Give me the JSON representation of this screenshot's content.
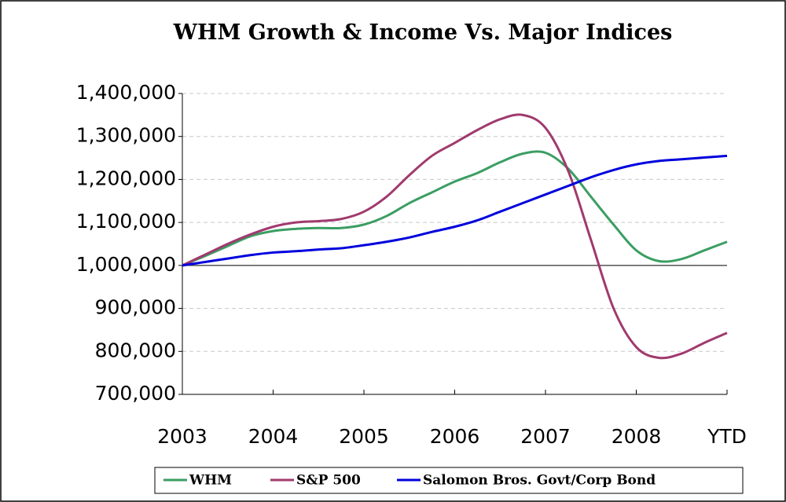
{
  "chart_data": {
    "type": "line",
    "title": "WHM Growth & Income Vs. Major Indices",
    "x": [
      2003,
      2003.25,
      2003.5,
      2003.75,
      2004,
      2004.25,
      2004.5,
      2004.75,
      2005,
      2005.25,
      2005.5,
      2005.75,
      2006,
      2006.25,
      2006.5,
      2006.75,
      2007,
      2007.25,
      2007.5,
      2007.75,
      2008,
      2008.25,
      2008.5,
      2008.75,
      2009
    ],
    "series": [
      {
        "name": "WHM",
        "color": "#3a9e62",
        "values": [
          1000000,
          1022000,
          1045000,
          1068000,
          1080000,
          1085000,
          1087000,
          1087000,
          1095000,
          1115000,
          1145000,
          1170000,
          1195000,
          1215000,
          1240000,
          1260000,
          1262000,
          1225000,
          1160000,
          1095000,
          1035000,
          1010000,
          1015000,
          1035000,
          1055000
        ]
      },
      {
        "name": "S&P 500",
        "color": "#a03a6e",
        "values": [
          1000000,
          1025000,
          1050000,
          1072000,
          1090000,
          1100000,
          1103000,
          1108000,
          1125000,
          1160000,
          1210000,
          1255000,
          1285000,
          1315000,
          1340000,
          1350000,
          1320000,
          1220000,
          1060000,
          900000,
          810000,
          785000,
          795000,
          820000,
          843000
        ]
      },
      {
        "name": "Salomon Bros. Govt/Corp Bond",
        "color": "#0000dd",
        "values": [
          1000000,
          1008000,
          1016000,
          1024000,
          1030000,
          1033000,
          1037000,
          1040000,
          1047000,
          1055000,
          1065000,
          1078000,
          1090000,
          1105000,
          1125000,
          1145000,
          1165000,
          1185000,
          1205000,
          1222000,
          1235000,
          1243000,
          1247000,
          1251000,
          1255000
        ]
      }
    ],
    "xlim": [
      2003,
      2009
    ],
    "xticks": [
      2003,
      2004,
      2005,
      2006,
      2007,
      2008,
      {
        "value": 2009,
        "label": "YTD"
      }
    ],
    "ylim": [
      700000,
      1400000
    ],
    "yticks": [
      {
        "value": 700000,
        "label": "700,000"
      },
      {
        "value": 800000,
        "label": "800,000"
      },
      {
        "value": 900000,
        "label": "900,000"
      },
      {
        "value": 1000000,
        "label": "1,000,000"
      },
      {
        "value": 1100000,
        "label": "1,100,000"
      },
      {
        "value": 1200000,
        "label": "1,200,000"
      },
      {
        "value": 1300000,
        "label": "1,300,000"
      },
      {
        "value": 1400000,
        "label": "1,400,000"
      }
    ],
    "baseline": 1000000,
    "grid": true,
    "legend": "bottom"
  }
}
